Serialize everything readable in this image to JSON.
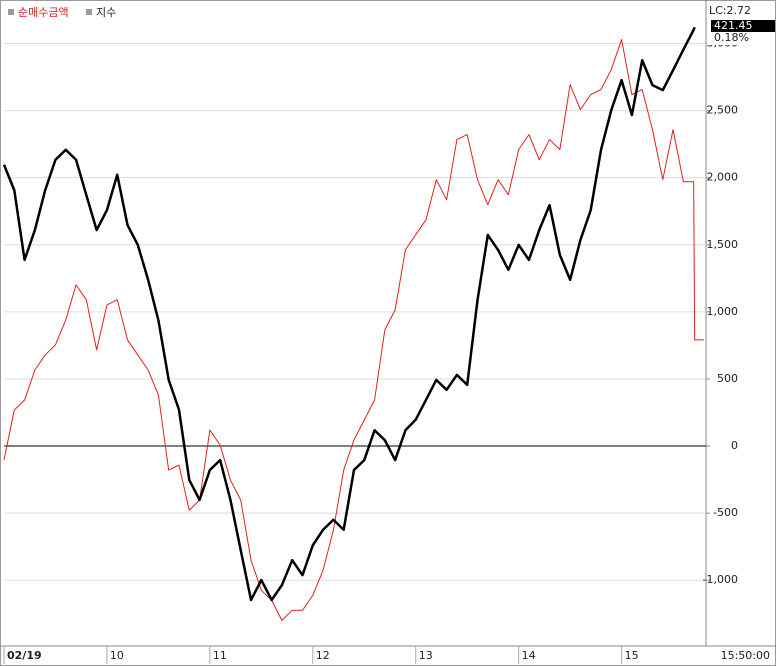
{
  "chart_data": {
    "type": "line",
    "legend": [
      "순매수금액",
      "지수"
    ],
    "info": {
      "lc": "LC:2.72",
      "last": "421.45",
      "change": "0.18%"
    },
    "cursor_time": "15:50:00",
    "x": [
      9.0,
      9.1,
      9.2,
      9.3,
      9.4,
      9.5,
      9.6,
      9.7,
      9.8,
      9.9,
      10.0,
      10.1,
      10.2,
      10.3,
      10.4,
      10.5,
      10.6,
      10.7,
      10.8,
      10.9,
      11.0,
      11.1,
      11.2,
      11.3,
      11.4,
      11.5,
      11.6,
      11.7,
      11.8,
      11.9,
      12.0,
      12.1,
      12.2,
      12.3,
      12.4,
      12.5,
      12.6,
      12.7,
      12.8,
      12.9,
      13.0,
      13.1,
      13.2,
      13.3,
      13.4,
      13.5,
      13.6,
      13.7,
      13.8,
      13.9,
      14.0,
      14.1,
      14.2,
      14.3,
      14.4,
      14.5,
      14.6,
      14.7,
      14.8,
      14.9,
      15.0,
      15.1,
      15.2,
      15.3,
      15.4,
      15.5,
      15.6,
      15.7,
      15.71,
      15.8
    ],
    "xlim": [
      9,
      15.82
    ],
    "xticks": [
      {
        "value": 9,
        "label": "02/19"
      },
      10,
      11,
      12,
      13,
      14,
      15
    ],
    "series": [
      {
        "name": "순매수금액",
        "color": "#e02020",
        "width": 1,
        "values": [
          -104,
          269,
          343,
          567,
          679,
          754,
          940,
          1201,
          1090,
          716,
          1052,
          1090,
          791,
          679,
          567,
          381,
          -179,
          -142,
          -478,
          -403,
          119,
          7,
          -254,
          -403,
          -851,
          -1075,
          -1149,
          -1299,
          -1224,
          -1224,
          -1112,
          -925,
          -627,
          -179,
          45,
          194,
          343,
          866,
          1015,
          1463,
          1575,
          1687,
          1985,
          1836,
          2284,
          2321,
          1985,
          1799,
          1985,
          1873,
          2209,
          2321,
          2134,
          2284,
          2209,
          2694,
          2507,
          2619,
          2657,
          2806,
          3030,
          2619,
          2657,
          2358,
          1985,
          2358,
          1970,
          1970,
          791,
          791
        ]
      },
      {
        "name": "지수",
        "color": "#000000",
        "width": 2.5,
        "axis": "y2",
        "values": [
          419.24,
          418.83,
          417.71,
          418.19,
          418.83,
          419.32,
          419.48,
          419.32,
          418.75,
          418.19,
          418.51,
          419.08,
          418.27,
          417.95,
          417.39,
          416.74,
          415.78,
          415.3,
          414.17,
          413.85,
          414.33,
          414.49,
          413.85,
          413.04,
          412.24,
          412.56,
          412.24,
          412.48,
          412.88,
          412.64,
          413.12,
          413.37,
          413.53,
          413.37,
          414.33,
          414.49,
          414.97,
          414.81,
          414.49,
          414.97,
          415.14,
          415.46,
          415.78,
          415.62,
          415.86,
          415.7,
          417.06,
          418.11,
          417.87,
          417.55,
          417.95,
          417.71,
          418.19,
          418.59,
          417.79,
          417.39,
          418.03,
          418.51,
          419.48,
          420.12,
          420.6,
          420.04,
          420.92,
          420.52,
          420.44,
          420.76,
          421.09,
          421.41,
          421.45,
          null
        ]
      }
    ],
    "ylim": [
      -1490,
      3190
    ],
    "yticks": [
      {
        "value": -1000,
        "label": "-1,000"
      },
      -500,
      0,
      500,
      {
        "value": 1000,
        "label": "1,000"
      },
      {
        "value": 1500,
        "label": "1,500"
      },
      {
        "value": 2000,
        "label": "2,000"
      },
      {
        "value": 2500,
        "label": "2,500"
      },
      {
        "value": 3000,
        "label": "3,000"
      }
    ],
    "y2lim": [
      411.5,
      421.6
    ],
    "grid": true,
    "zero_line": true
  }
}
